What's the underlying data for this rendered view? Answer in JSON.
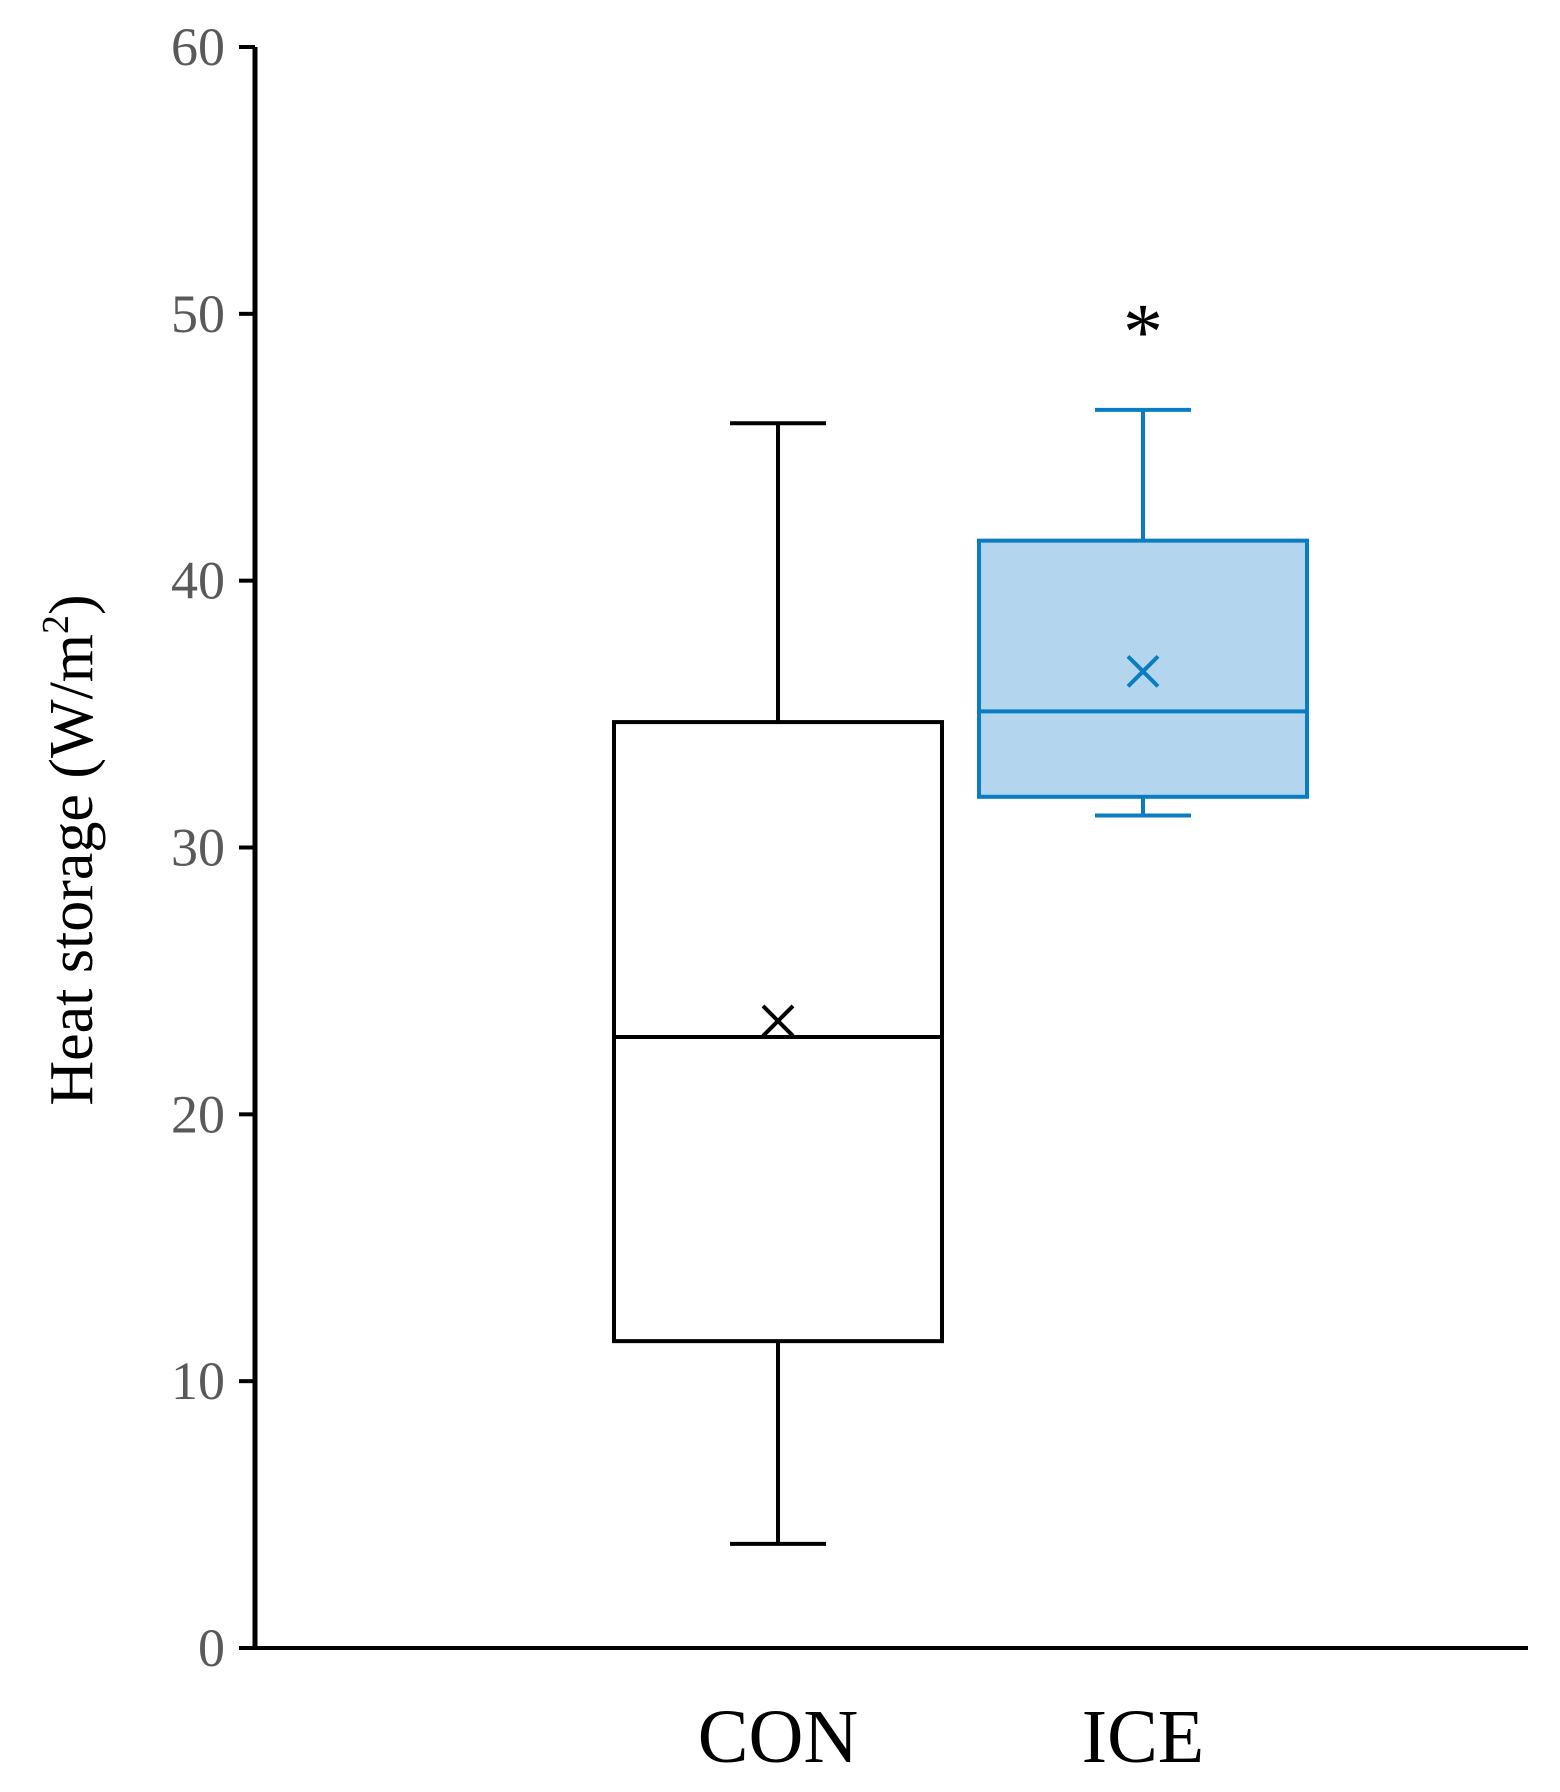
{
  "chart_data": {
    "type": "box",
    "ylabel": "Heat storage (W/m",
    "ylabel_superscript": "2",
    "ylabel_close": ")",
    "ylim": [
      0,
      60
    ],
    "yticks": [
      0,
      10,
      20,
      30,
      40,
      50,
      60
    ],
    "categories": [
      "CON",
      "ICE"
    ],
    "series": [
      {
        "category": "CON",
        "min": 3.9,
        "q1": 11.5,
        "median": 22.9,
        "mean": 23.5,
        "q3": 34.7,
        "max": 45.9,
        "color": "#000000",
        "fill": "#ffffff"
      },
      {
        "category": "ICE",
        "min": 31.2,
        "q1": 31.9,
        "median": 35.1,
        "mean": 36.6,
        "q3": 41.5,
        "max": 46.4,
        "color": "#0a7cc1",
        "fill": "#b3d6ee"
      }
    ],
    "annotations": [
      {
        "text": "*",
        "category": "ICE",
        "y": 50.2
      }
    ],
    "grid": false,
    "legend": "none"
  }
}
